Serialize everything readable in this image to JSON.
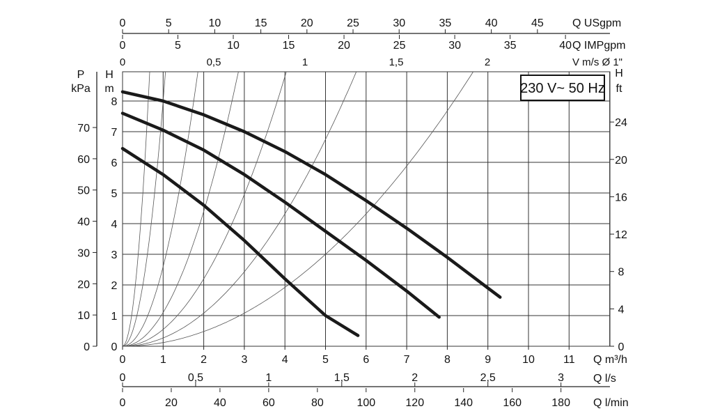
{
  "chart_data": {
    "type": "line",
    "title": "230 V~ 50 Hz",
    "xlabel": "Q m³/h",
    "ylabel": "H m",
    "xlim": [
      0,
      12
    ],
    "ylim": [
      0,
      9
    ],
    "grid": true,
    "x_ticks": [
      "0",
      "1",
      "2",
      "3",
      "4",
      "5",
      "6",
      "7",
      "8",
      "9",
      "10",
      "11"
    ],
    "y_ticks": [
      "0",
      "1",
      "2",
      "3",
      "4",
      "5",
      "6",
      "7",
      "8"
    ],
    "secondary_axes": {
      "top_usgpm": {
        "label": "Q USgpm",
        "ticks": [
          "0",
          "5",
          "10",
          "15",
          "20",
          "25",
          "30",
          "35",
          "40",
          "45"
        ],
        "values": [
          0,
          5,
          10,
          15,
          20,
          25,
          30,
          35,
          40,
          45
        ]
      },
      "top_impgpm": {
        "label": "Q IMPgpm",
        "ticks": [
          "0",
          "5",
          "10",
          "15",
          "20",
          "25",
          "30",
          "35",
          "40"
        ],
        "values": [
          0,
          5,
          10,
          15,
          20,
          25,
          30,
          35,
          40
        ]
      },
      "top_velocity": {
        "label": "V m/s Ø 1\"",
        "ticks": [
          "0",
          "0,5",
          "1",
          "1,5",
          "2"
        ],
        "values": [
          0,
          0.5,
          1,
          1.5,
          2
        ]
      },
      "left_pressure": {
        "label_line1": "P",
        "label_line2": "kPa",
        "ticks": [
          "0",
          "10",
          "20",
          "30",
          "40",
          "50",
          "60",
          "70"
        ],
        "values": [
          0,
          10,
          20,
          30,
          40,
          50,
          60,
          70
        ]
      },
      "left_head_label": {
        "line1": "H",
        "line2": "m"
      },
      "right_feet": {
        "label_line1": "H",
        "label_line2": "ft",
        "ticks": [
          "0",
          "4",
          "8",
          "12",
          "16",
          "20",
          "24"
        ],
        "values": [
          0,
          4,
          8,
          12,
          16,
          20,
          24
        ]
      },
      "bottom_ls": {
        "label": "Q l/s",
        "ticks": [
          "0",
          "0,5",
          "1",
          "1,5",
          "2",
          "2,5",
          "3"
        ],
        "values": [
          0,
          0.5,
          1,
          1.5,
          2,
          2.5,
          3
        ]
      },
      "bottom_lmin": {
        "label": "Q l/min",
        "ticks": [
          "0",
          "20",
          "40",
          "60",
          "80",
          "100",
          "120",
          "140",
          "160",
          "180"
        ],
        "values": [
          0,
          20,
          40,
          60,
          80,
          100,
          120,
          140,
          160,
          180
        ]
      }
    },
    "series": [
      {
        "x": [
          0,
          1,
          2,
          3,
          4,
          5,
          5.8
        ],
        "y": [
          6.45,
          5.6,
          4.6,
          3.45,
          2.2,
          1.0,
          0.35
        ]
      },
      {
        "x": [
          0,
          1,
          2,
          3,
          4,
          5,
          6,
          7,
          7.8
        ],
        "y": [
          7.6,
          7.05,
          6.4,
          5.6,
          4.7,
          3.75,
          2.8,
          1.8,
          0.95
        ]
      },
      {
        "x": [
          0,
          1,
          2,
          3,
          4,
          5,
          6,
          7,
          8,
          9,
          9.3
        ],
        "y": [
          8.3,
          8.0,
          7.55,
          7.0,
          6.35,
          5.6,
          4.75,
          3.85,
          2.9,
          1.9,
          1.6
        ]
      }
    ],
    "system_curves_k": [
      20,
      8,
      2.6,
      1.1,
      0.55,
      0.27,
      0.12
    ]
  }
}
